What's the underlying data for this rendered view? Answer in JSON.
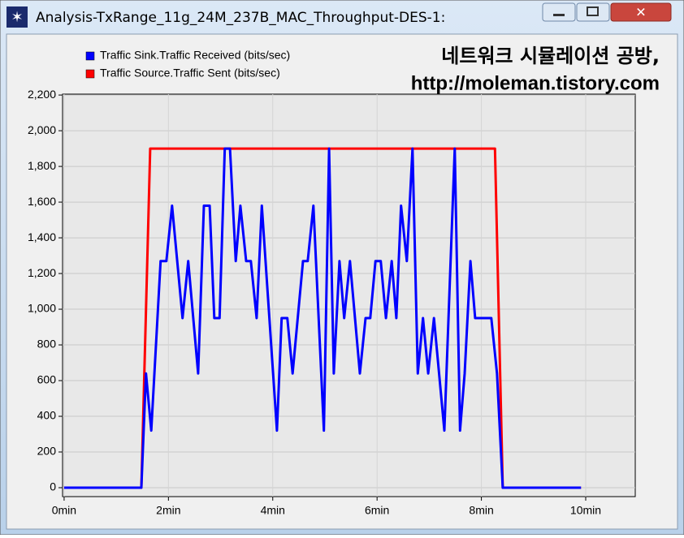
{
  "window": {
    "title": "Analysis-TxRange_11g_24M_237B_MAC_Throughput-DES-1:"
  },
  "watermark": [
    "네트워크 시뮬레이션 공방,",
    "http://moleman.tistory.com"
  ],
  "chart_data": {
    "type": "line",
    "series": [
      {
        "name": "Traffic Sink.Traffic Received (bits/sec)",
        "color": "#0000ff",
        "x": [
          0,
          1.48,
          1.57,
          1.67,
          1.85,
          1.96,
          2.07,
          2.27,
          2.38,
          2.57,
          2.68,
          2.79,
          2.88,
          2.98,
          3.08,
          3.18,
          3.29,
          3.38,
          3.49,
          3.58,
          3.69,
          3.79,
          4.08,
          4.17,
          4.28,
          4.38,
          4.58,
          4.67,
          4.78,
          4.98,
          5.08,
          5.17,
          5.28,
          5.37,
          5.48,
          5.67,
          5.78,
          5.87,
          5.97,
          6.07,
          6.17,
          6.28,
          6.37,
          6.46,
          6.57,
          6.68,
          6.78,
          6.88,
          6.98,
          7.09,
          7.29,
          7.49,
          7.59,
          7.68,
          7.79,
          7.88,
          8.19,
          8.3,
          8.41,
          9.91
        ],
        "values": [
          0,
          0,
          640,
          320,
          1270,
          1270,
          1580,
          950,
          1270,
          640,
          1580,
          1580,
          950,
          950,
          1900,
          1900,
          1270,
          1580,
          1270,
          1270,
          950,
          1580,
          320,
          950,
          950,
          640,
          1270,
          1270,
          1580,
          320,
          1900,
          640,
          1270,
          950,
          1270,
          640,
          950,
          950,
          1270,
          1270,
          950,
          1270,
          950,
          1580,
          1270,
          1900,
          640,
          950,
          640,
          950,
          320,
          1900,
          320,
          640,
          1270,
          950,
          950,
          640,
          0,
          0
        ]
      },
      {
        "name": "Traffic Source.Traffic Sent (bits/sec)",
        "color": "#ff0000",
        "x": [
          0,
          1.48,
          1.65,
          8.26,
          8.41,
          9.91
        ],
        "values": [
          0,
          0,
          1900,
          1900,
          0,
          0
        ]
      }
    ],
    "xlim": [
      -0.03,
      10.95
    ],
    "xticks": [
      {
        "value": 0,
        "label": "0min"
      },
      {
        "value": 2,
        "label": "2min"
      },
      {
        "value": 4,
        "label": "4min"
      },
      {
        "value": 6,
        "label": "6min"
      },
      {
        "value": 8,
        "label": "8min"
      },
      {
        "value": 10,
        "label": "10min"
      }
    ],
    "ylim": [
      -50,
      2205
    ],
    "yticks": [
      0,
      200,
      400,
      600,
      800,
      {
        "value": 1000,
        "label": "1,000"
      },
      {
        "value": 1200,
        "label": "1,200"
      },
      {
        "value": 1400,
        "label": "1,400"
      },
      {
        "value": 1600,
        "label": "1,600"
      },
      {
        "value": 1800,
        "label": "1,800"
      },
      {
        "value": 2000,
        "label": "2,000"
      },
      {
        "value": 2200,
        "label": "2,200"
      }
    ],
    "grid": true
  }
}
